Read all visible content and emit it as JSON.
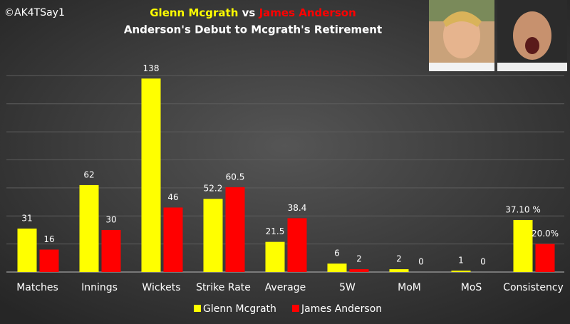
{
  "watermark": "©AK4TSay1",
  "chart_data": {
    "type": "bar",
    "title_parts": [
      "Glenn Mcgrath",
      "vs",
      "James Anderson"
    ],
    "subtitle": "Anderson's Debut to Mcgrath's Retirement",
    "categories": [
      "Matches",
      "Innings",
      "Wickets",
      "Strike Rate",
      "Average",
      "5W",
      "MoM",
      "MoS",
      "Consistency"
    ],
    "series": [
      {
        "name": "Glenn Mcgrath",
        "color": "#ffff00",
        "values": [
          31,
          62,
          138,
          52.2,
          21.5,
          6,
          2,
          1,
          37.1
        ],
        "value_labels": [
          "31",
          "62",
          "138",
          "52.2",
          "21.5",
          "6",
          "2",
          "1",
          "37.10 %"
        ]
      },
      {
        "name": "James Anderson",
        "color": "#ff0000",
        "values": [
          16,
          30,
          46,
          60.5,
          38.4,
          2,
          0,
          0,
          20
        ],
        "value_labels": [
          "16",
          "30",
          "46",
          "60.5",
          "38.4",
          "2",
          "0",
          "0",
          "20.0%"
        ]
      }
    ],
    "ylim": [
      0,
      160
    ],
    "yticks": [
      0,
      20,
      40,
      60,
      80,
      100,
      120,
      140
    ],
    "grid": true,
    "legend": "bottom"
  }
}
